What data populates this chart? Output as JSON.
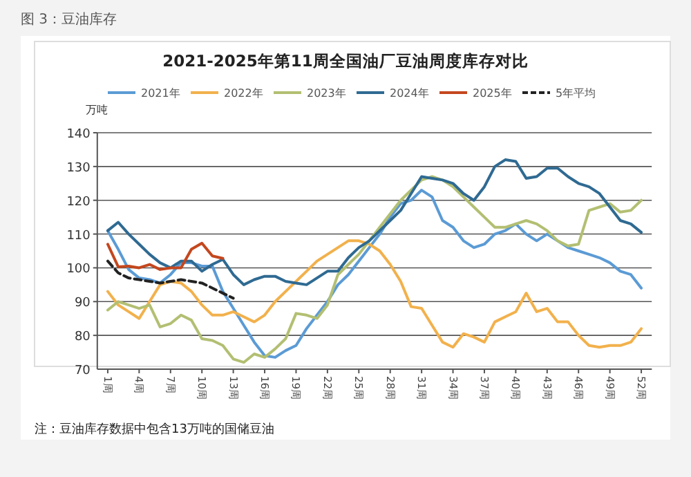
{
  "chart_data": {
    "type": "line",
    "title": "2021-2025年第11周全国油厂豆油周度库存对比",
    "ylabel": "万吨",
    "annotations": [
      "图 3：豆油库存",
      "注：豆油库存数据中包含13万吨的国储豆油"
    ],
    "x": [
      1,
      2,
      3,
      4,
      5,
      6,
      7,
      8,
      9,
      10,
      11,
      12,
      13,
      14,
      15,
      16,
      17,
      18,
      19,
      20,
      21,
      22,
      23,
      24,
      25,
      26,
      27,
      28,
      29,
      30,
      31,
      32,
      33,
      34,
      35,
      36,
      37,
      38,
      39,
      40,
      41,
      42,
      43,
      44,
      45,
      46,
      47,
      48,
      49,
      50,
      51,
      52
    ],
    "xlim": [
      0,
      53
    ],
    "xticks": [
      {
        "value": 1,
        "label": "1周"
      },
      {
        "value": 4,
        "label": "4周"
      },
      {
        "value": 7,
        "label": "7周"
      },
      {
        "value": 10,
        "label": "10周"
      },
      {
        "value": 13,
        "label": "13周"
      },
      {
        "value": 16,
        "label": "16周"
      },
      {
        "value": 19,
        "label": "19周"
      },
      {
        "value": 22,
        "label": "22周"
      },
      {
        "value": 25,
        "label": "25周"
      },
      {
        "value": 28,
        "label": "28周"
      },
      {
        "value": 31,
        "label": "31周"
      },
      {
        "value": 34,
        "label": "34周"
      },
      {
        "value": 37,
        "label": "37周"
      },
      {
        "value": 40,
        "label": "40周"
      },
      {
        "value": 43,
        "label": "43周"
      },
      {
        "value": 46,
        "label": "46周"
      },
      {
        "value": 49,
        "label": "49周"
      },
      {
        "value": 52,
        "label": "52周"
      }
    ],
    "ylim": [
      70,
      140
    ],
    "yticks": [
      70,
      80,
      90,
      100,
      110,
      120,
      130,
      140
    ],
    "grid": "y",
    "legend": "top",
    "series": [
      {
        "name": "2021年",
        "color": "#5b9bd5",
        "values": [
          111,
          105.5,
          99.5,
          97,
          96.5,
          95.5,
          98,
          101.5,
          101.5,
          100.5,
          100.5,
          93,
          88,
          83,
          78,
          74,
          73.5,
          75.5,
          77,
          82,
          86,
          90,
          95,
          98,
          102,
          106,
          110,
          115,
          119,
          120,
          123,
          121,
          114,
          112,
          108,
          106,
          107,
          110,
          111,
          113,
          110,
          108,
          110,
          108,
          106,
          105,
          104,
          103,
          101.5,
          99,
          98,
          94
        ]
      },
      {
        "name": "2022年",
        "color": "#f2b14c",
        "values": [
          93,
          89,
          87,
          85,
          90,
          95,
          96,
          95.5,
          93,
          89,
          86,
          86,
          87,
          85.5,
          84,
          86,
          90,
          93,
          96,
          99,
          102,
          104,
          106,
          108,
          108,
          107,
          105,
          101,
          96,
          88.5,
          88,
          83,
          78,
          76.5,
          80.5,
          79.5,
          78,
          84,
          85.5,
          87,
          92.5,
          87,
          88,
          84,
          84,
          80,
          77,
          76.5,
          77,
          77,
          78,
          82
        ]
      },
      {
        "name": "2023年",
        "color": "#b3bf72",
        "values": [
          87.5,
          90,
          89,
          88,
          89,
          82.5,
          83.5,
          86,
          84.5,
          79,
          78.5,
          77,
          73,
          72,
          74.5,
          73.5,
          76,
          79,
          86.5,
          86,
          85,
          89,
          98,
          101,
          104,
          108,
          112,
          116,
          120,
          123,
          126,
          127,
          126,
          124,
          121,
          118,
          115,
          112,
          112,
          113,
          114,
          113,
          111,
          108,
          106.5,
          107,
          117,
          118,
          119,
          116.5,
          117,
          120
        ]
      },
      {
        "name": "2024年",
        "color": "#2f6a92",
        "values": [
          111,
          113.5,
          110,
          107,
          104,
          101.5,
          100,
          102,
          102,
          99,
          101,
          102.5,
          98,
          95,
          96.5,
          97.5,
          97.5,
          96,
          95.5,
          95,
          97,
          99,
          99,
          103,
          106,
          108,
          111,
          114,
          117,
          122,
          127,
          126.5,
          126,
          125,
          122,
          120,
          124,
          130,
          132,
          131.5,
          126.5,
          127,
          129.5,
          129.5,
          127,
          125,
          124,
          122,
          118,
          114,
          113,
          110.5
        ]
      },
      {
        "name": "2025年",
        "color": "#c4471e",
        "values": [
          107,
          100.3,
          100.5,
          100,
          101,
          99.5,
          100,
          100,
          105.5,
          107.3,
          103.5,
          102.8,
          null,
          null,
          null,
          null,
          null,
          null,
          null,
          null,
          null,
          null,
          null,
          null,
          null,
          null,
          null,
          null,
          null,
          null,
          null,
          null,
          null,
          null,
          null,
          null,
          null,
          null,
          null,
          null,
          null,
          null,
          null,
          null,
          null,
          null,
          null,
          null,
          null,
          null,
          null,
          null
        ]
      },
      {
        "name": "5年平均",
        "color": "#222222",
        "line_style": "dashed",
        "values": [
          102,
          98.5,
          97,
          96.5,
          96,
          95.5,
          96,
          96.5,
          96,
          95.5,
          94,
          92.5,
          91,
          null,
          null,
          null,
          null,
          null,
          null,
          null,
          null,
          null,
          null,
          null,
          null,
          null,
          null,
          null,
          null,
          null,
          null,
          null,
          null,
          null,
          null,
          null,
          null,
          null,
          null,
          null,
          null,
          null,
          null,
          null,
          null,
          null,
          null,
          null,
          null,
          null,
          null,
          null
        ]
      }
    ]
  }
}
